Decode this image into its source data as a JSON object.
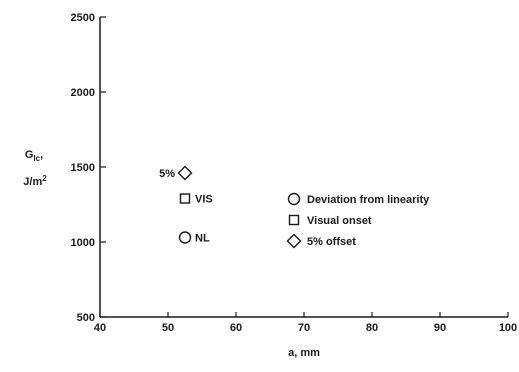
{
  "chart_data": {
    "type": "scatter",
    "x_axis": {
      "label": "a, mm",
      "range": [
        40,
        100
      ],
      "ticks": [
        40,
        50,
        60,
        70,
        80,
        90,
        100
      ]
    },
    "y_axis": {
      "label_line1": "G",
      "label_sub": "Ic",
      "label_line1_suffix": ",",
      "label_line2": "J/m",
      "label_sup": "2",
      "range": [
        500,
        2500
      ],
      "ticks": [
        500,
        1000,
        1500,
        2000,
        2500
      ]
    },
    "grid": false,
    "series": [
      {
        "name": "Deviation from linearity",
        "marker": "circle",
        "points": [
          {
            "x": 52.5,
            "y": 1030,
            "label": "NL"
          }
        ]
      },
      {
        "name": "Visual onset",
        "marker": "square",
        "points": [
          {
            "x": 52.5,
            "y": 1290,
            "label": "VIS"
          }
        ]
      },
      {
        "name": "5% offset",
        "marker": "diamond",
        "points": [
          {
            "x": 52.5,
            "y": 1460,
            "label": "5%"
          }
        ]
      }
    ],
    "legend_position": "center-right"
  }
}
